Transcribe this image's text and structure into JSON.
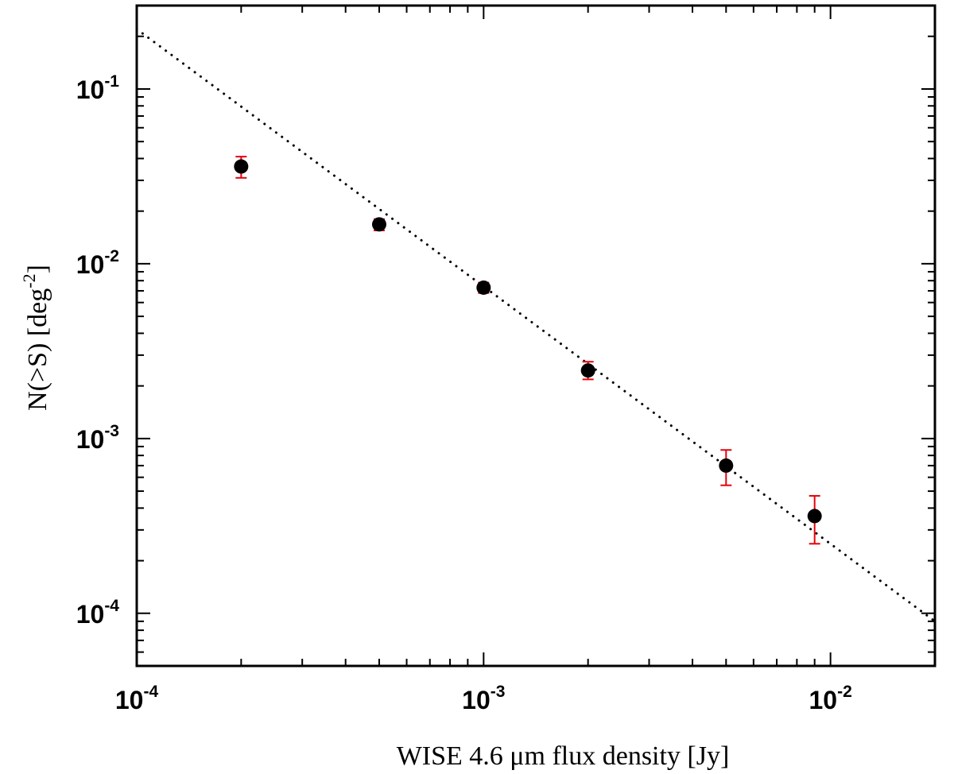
{
  "chart_data": {
    "type": "scatter",
    "title": "",
    "xlabel": "WISE 4.6 μm flux density [Jy]",
    "ylabel": "N(>S) [deg",
    "ylabel_superscript": "-2",
    "ylabel_suffix": "]",
    "x_scale": "log",
    "y_scale": "log",
    "xlim": [
      0.0001,
      0.02
    ],
    "ylim": [
      5e-05,
      0.3
    ],
    "x_ticks": [
      {
        "value": 0.0001,
        "base": "10",
        "exp": "-4"
      },
      {
        "value": 0.001,
        "base": "10",
        "exp": "-3"
      },
      {
        "value": 0.01,
        "base": "10",
        "exp": "-2"
      }
    ],
    "y_ticks": [
      {
        "value": 0.0001,
        "base": "10",
        "exp": "-4"
      },
      {
        "value": 0.001,
        "base": "10",
        "exp": "-3"
      },
      {
        "value": 0.01,
        "base": "10",
        "exp": "-2"
      },
      {
        "value": 0.1,
        "base": "10",
        "exp": "-1"
      }
    ],
    "grid": false,
    "series": [
      {
        "kind": "points-with-errorbars",
        "marker_color": "#000000",
        "error_color": "#e8000b",
        "points": [
          {
            "x": 0.0002,
            "y": 0.036,
            "y_lo": 0.031,
            "y_hi": 0.041
          },
          {
            "x": 0.0005,
            "y": 0.0168,
            "y_lo": 0.0155,
            "y_hi": 0.018
          },
          {
            "x": 0.001,
            "y": 0.0073,
            "y_lo": 0.0068,
            "y_hi": 0.0078
          },
          {
            "x": 0.002,
            "y": 0.00245,
            "y_lo": 0.00218,
            "y_hi": 0.00275
          },
          {
            "x": 0.005,
            "y": 0.0007,
            "y_lo": 0.00054,
            "y_hi": 0.00086
          },
          {
            "x": 0.009,
            "y": 0.00036,
            "y_lo": 0.00025,
            "y_hi": 0.00047
          }
        ]
      },
      {
        "kind": "dotted-line",
        "line_color": "#000000",
        "points": [
          {
            "x": 0.0001,
            "y": 0.22
          },
          {
            "x": 0.02,
            "y": 9e-05
          }
        ]
      }
    ]
  }
}
